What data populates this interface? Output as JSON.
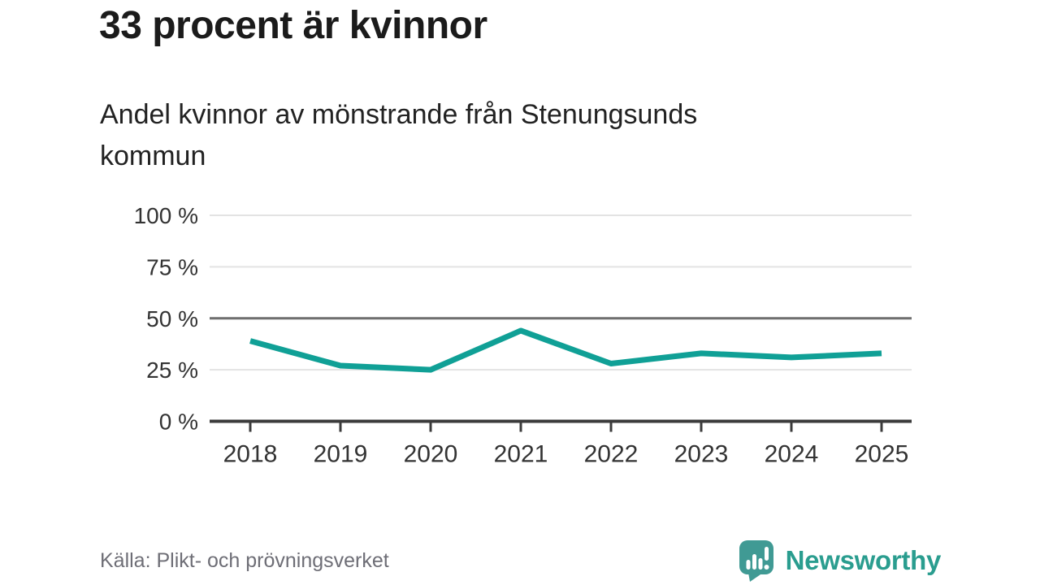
{
  "header": {
    "title": "33 procent är kvinnor",
    "subtitle_lines": [
      "Andel kvinnor av mönstrande från Stenungsunds",
      "kommun"
    ]
  },
  "chart_data": {
    "type": "line",
    "title": "Andel kvinnor av mönstrande från Stenungsunds kommun",
    "categories": [
      "2018",
      "2019",
      "2020",
      "2021",
      "2022",
      "2023",
      "2024",
      "2025"
    ],
    "series": [
      {
        "name": "Andel kvinnor av mönstrande",
        "values": [
          39,
          27,
          25,
          44,
          28,
          33,
          31,
          33
        ]
      }
    ],
    "unit": "%",
    "ylim": [
      0,
      100
    ],
    "yticks": [
      0,
      25,
      50,
      75,
      100
    ],
    "ytick_labels": [
      "0 %",
      "25 %",
      "50 %",
      "75 %",
      "100 %"
    ],
    "grid": "horizontal",
    "emphasized_gridline": 50,
    "legend_position": "none",
    "line_color": "#10a096",
    "axis_color": "#3b3b3b",
    "grid_color": "#e3e3e3",
    "mid_grid_color": "#6f6f6f",
    "tick_label_color": "#333333"
  },
  "footer": {
    "source": "Källa: Plikt- och prövningsverket",
    "brand_name": "Newsworthy",
    "brand_color": "#2a9d8f",
    "brand_icon": "speech-bubble-bar-chart-icon",
    "brand_icon_color": "#409a94"
  }
}
